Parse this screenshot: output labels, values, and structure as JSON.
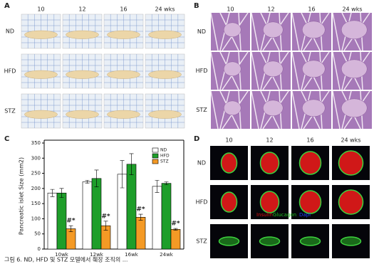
{
  "panels": {
    "A": {
      "label": "A",
      "columns": [
        "10",
        "12",
        "16",
        "24 wks"
      ],
      "rows": [
        "ND",
        "HFD",
        "STZ"
      ]
    },
    "B": {
      "label": "B",
      "columns": [
        "10",
        "12",
        "16",
        "24 wks"
      ],
      "rows": [
        "ND",
        "HFD",
        "STZ"
      ]
    },
    "D": {
      "label": "D",
      "columns": [
        "10",
        "12",
        "16",
        "24 wks"
      ],
      "rows": [
        "ND",
        "HFD",
        "STZ"
      ],
      "stain_labels": [
        "Insulin",
        "Glucagon",
        "Dapi"
      ]
    }
  },
  "chart_data": {
    "type": "bar",
    "label": "C",
    "ylabel": "Pancreatic islet Size (mm2)",
    "categories": [
      "10wk",
      "12wk",
      "16wk",
      "24wk"
    ],
    "series": [
      {
        "name": "ND",
        "color": "#ffffff",
        "values": [
          185,
          222,
          247,
          207
        ],
        "errors": [
          12,
          5,
          45,
          20
        ]
      },
      {
        "name": "HFD",
        "color": "#1e9e2a",
        "values": [
          185,
          233,
          280,
          217
        ],
        "errors": [
          15,
          28,
          35,
          5
        ]
      },
      {
        "name": "STZ",
        "color": "#f49a25",
        "values": [
          67,
          77,
          105,
          65
        ],
        "errors": [
          10,
          15,
          10,
          3
        ]
      }
    ],
    "annotations": [
      "#*",
      "#*",
      "#*",
      "#*"
    ],
    "ylim": [
      0,
      350
    ],
    "yticks": [
      0,
      50,
      100,
      150,
      200,
      250,
      300,
      350
    ],
    "legend": "upper right"
  },
  "caption": "그림 6. ND, HFD 및 STZ 모델에서 췌장 조직의 ..."
}
